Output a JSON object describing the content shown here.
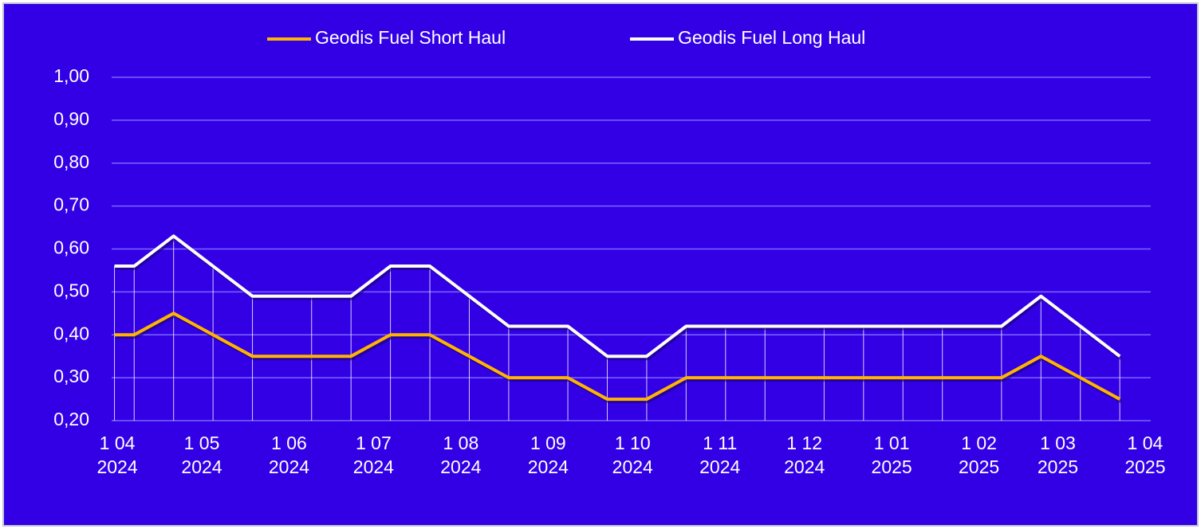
{
  "chart_data": {
    "type": "line",
    "x": [
      "2024-03-31",
      "2024-04-07",
      "2024-04-21",
      "2024-05-05",
      "2024-05-19",
      "2024-06-09",
      "2024-06-23",
      "2024-07-07",
      "2024-07-21",
      "2024-08-04",
      "2024-08-18",
      "2024-09-08",
      "2024-09-22",
      "2024-10-06",
      "2024-10-20",
      "2024-11-03",
      "2024-11-17",
      "2024-12-08",
      "2024-12-22",
      "2025-01-05",
      "2025-01-19",
      "2025-02-09",
      "2025-02-23",
      "2025-03-09",
      "2025-03-23"
    ],
    "series": [
      {
        "name": "Geodis Fuel Short Haul",
        "color": "#ffb400",
        "values": [
          0.4,
          0.4,
          0.45,
          0.4,
          0.35,
          0.35,
          0.35,
          0.4,
          0.4,
          0.35,
          0.3,
          0.3,
          0.25,
          0.25,
          0.3,
          0.3,
          0.3,
          0.3,
          0.3,
          0.3,
          0.3,
          0.3,
          0.35,
          0.3,
          0.25
        ]
      },
      {
        "name": "Geodis Fuel Long Haul",
        "color": "#ffffff",
        "values": [
          0.56,
          0.56,
          0.63,
          0.56,
          0.49,
          0.49,
          0.49,
          0.56,
          0.56,
          0.49,
          0.42,
          0.42,
          0.35,
          0.35,
          0.42,
          0.42,
          0.42,
          0.42,
          0.42,
          0.42,
          0.42,
          0.42,
          0.49,
          0.42,
          0.35
        ]
      }
    ],
    "xlim": [
      "2024-03-30",
      "2025-04-03"
    ],
    "xticks": [
      {
        "value": "2024-04-01",
        "label": "1 04\n2024"
      },
      {
        "value": "2024-05-01",
        "label": "1 05\n2024"
      },
      {
        "value": "2024-06-01",
        "label": "1 06\n2024"
      },
      {
        "value": "2024-07-01",
        "label": "1 07\n2024"
      },
      {
        "value": "2024-08-01",
        "label": "1 08\n2024"
      },
      {
        "value": "2024-09-01",
        "label": "1 09\n2024"
      },
      {
        "value": "2024-10-01",
        "label": "1 10\n2024"
      },
      {
        "value": "2024-11-01",
        "label": "1 11\n2024"
      },
      {
        "value": "2024-12-01",
        "label": "1 12\n2024"
      },
      {
        "value": "2025-01-01",
        "label": "1 01\n2025"
      },
      {
        "value": "2025-02-01",
        "label": "1 02\n2025"
      },
      {
        "value": "2025-03-01",
        "label": "1 03\n2025"
      },
      {
        "value": "2025-04-01",
        "label": "1 04\n2025"
      }
    ],
    "ylim": [
      0.2,
      1.0
    ],
    "yticks": [
      {
        "value": 0.2,
        "label": "0,20"
      },
      {
        "value": 0.3,
        "label": "0,30"
      },
      {
        "value": 0.4,
        "label": "0,40"
      },
      {
        "value": 0.5,
        "label": "0,50"
      },
      {
        "value": 0.6,
        "label": "0,60"
      },
      {
        "value": 0.7,
        "label": "0,70"
      },
      {
        "value": 0.8,
        "label": "0,80"
      },
      {
        "value": 0.9,
        "label": "0,90"
      },
      {
        "value": 1.0,
        "label": "1,00"
      }
    ],
    "grid": true,
    "legend": "top"
  }
}
